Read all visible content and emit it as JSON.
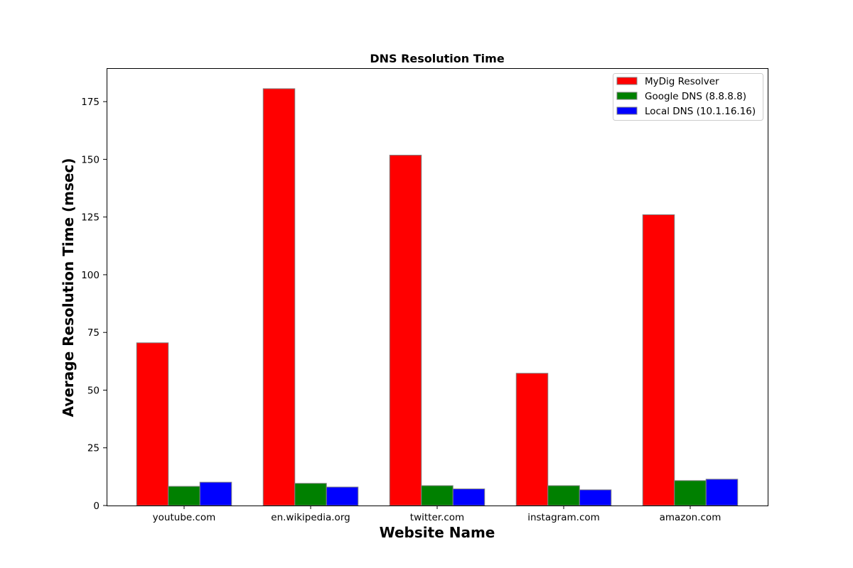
{
  "chart_data": {
    "type": "bar",
    "title": "DNS Resolution Time",
    "xlabel": "Website Name",
    "ylabel": "Average Resolution Time (msec)",
    "categories": [
      "youtube.com",
      "en.wikipedia.org",
      "twitter.com",
      "instagram.com",
      "amazon.com"
    ],
    "series": [
      {
        "name": "MyDig Resolver",
        "color": "#ff0000",
        "values": [
          70.5,
          180.6,
          151.8,
          57.3,
          126.0
        ]
      },
      {
        "name": "Google DNS (8.8.8.8)",
        "color": "#008000",
        "values": [
          8.3,
          9.6,
          8.6,
          8.6,
          10.8
        ]
      },
      {
        "name": "Local DNS (10.1.16.16)",
        "color": "#0000ff",
        "values": [
          10.1,
          8.0,
          7.2,
          6.8,
          11.4
        ]
      }
    ],
    "ylim": [
      0,
      189.5
    ],
    "yticks": [
      0,
      25,
      50,
      75,
      100,
      125,
      150,
      175
    ],
    "grid": false,
    "legend_position": "top-right"
  }
}
